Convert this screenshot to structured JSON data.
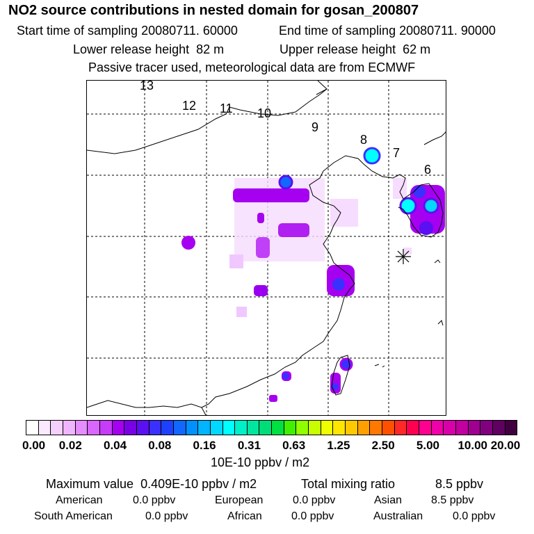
{
  "title": "NO2 source contributions in nested domain for gosan_200807",
  "sampling": {
    "start_label": "Start time of sampling",
    "start_value": "20080711. 60000",
    "end_label": "End time of sampling",
    "end_value": "20080711. 90000"
  },
  "release": {
    "lower_label": "Lower release height",
    "lower_value": "82 m",
    "upper_label": "Upper release height",
    "upper_value": "62 m"
  },
  "note": "Passive tracer used, meteorological data are from ECMWF",
  "map": {
    "day_labels": [
      "13",
      "12",
      "11",
      "10",
      "9",
      "8",
      "7",
      "6"
    ],
    "receptor_symbol": "asterisk-icon"
  },
  "colorbar": {
    "tick_labels": [
      "0.00",
      "0.02",
      "0.04",
      "0.08",
      "0.16",
      "0.31",
      "0.63",
      "1.25",
      "2.50",
      "5.00",
      "10.00",
      "20.00"
    ],
    "colors": [
      "#ffffff",
      "#fbeaff",
      "#f5d0ff",
      "#efb5ff",
      "#e58cff",
      "#d966ff",
      "#c63cf8",
      "#a600f0",
      "#7a00e6",
      "#5a10f0",
      "#3a30ff",
      "#2040ff",
      "#1068ff",
      "#0090ff",
      "#00b4ff",
      "#00d8ff",
      "#00ffff",
      "#00f0c8",
      "#00e6a0",
      "#00dc78",
      "#00e040",
      "#40f000",
      "#90ff00",
      "#c8ff00",
      "#f0ff00",
      "#ffe600",
      "#ffc800",
      "#ffa000",
      "#ff7800",
      "#ff5000",
      "#ff2828",
      "#ff0050",
      "#ff0090",
      "#f000a8",
      "#d800a8",
      "#c000a0",
      "#a00090",
      "#800080",
      "#600060",
      "#400040"
    ],
    "unit": "10E-10 ppbv / m2"
  },
  "summary": {
    "max_label": "Maximum value",
    "max_value": "0.409E-10 ppbv / m2",
    "total_label": "Total mixing ratio",
    "total_value": "8.5 ppbv"
  },
  "regions": [
    {
      "name": "American",
      "value": "0.0 ppbv"
    },
    {
      "name": "European",
      "value": "0.0 ppbv"
    },
    {
      "name": "Asian",
      "value": "8.5 ppbv"
    },
    {
      "name": "South American",
      "value": "0.0 ppbv"
    },
    {
      "name": "African",
      "value": "0.0 ppbv"
    },
    {
      "name": "Australian",
      "value": "0.0 ppbv"
    }
  ]
}
